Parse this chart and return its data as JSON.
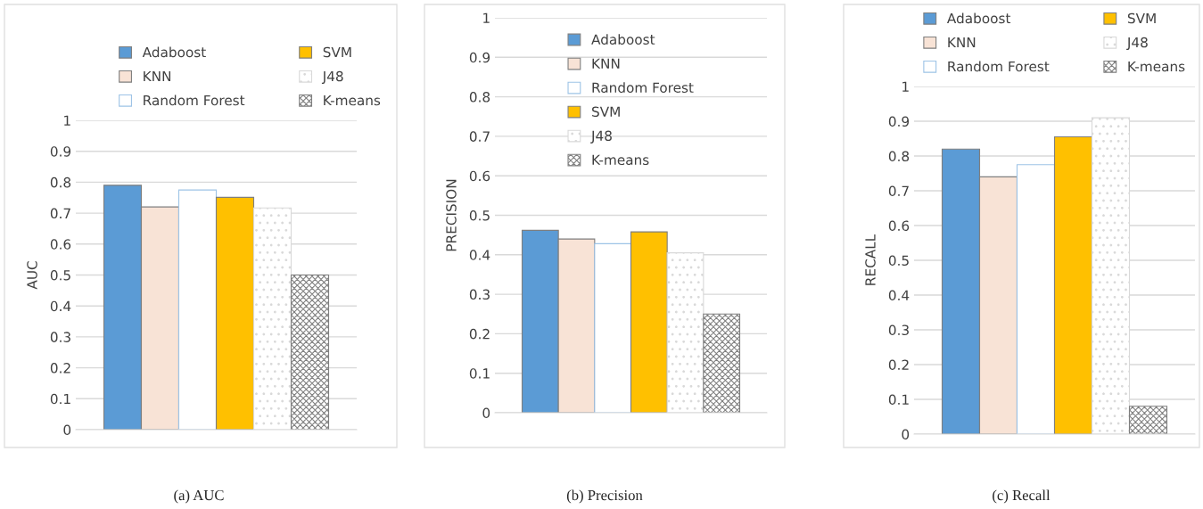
{
  "chart_data": [
    {
      "type": "bar",
      "ylabel": "AUC",
      "categories": [
        null
      ],
      "ylim": [
        0,
        1
      ],
      "yticks": [
        0,
        0.1,
        0.2,
        0.3,
        0.4,
        0.5,
        0.6,
        0.7,
        0.8,
        0.9,
        1
      ],
      "grid": "y",
      "legend": "top",
      "tick_labels": "y",
      "annotations": [
        "(a) AUC"
      ],
      "series": [
        {
          "name": "Adaboost",
          "color": "#5b9bd5",
          "values": [
            0.79
          ]
        },
        {
          "name": "KNN",
          "color": "#f8e3d6",
          "values": [
            0.72
          ]
        },
        {
          "name": "Random Forest",
          "color": "#ffffff",
          "values": [
            0.775
          ]
        },
        {
          "name": "SVM",
          "color": "#ffc000",
          "values": [
            0.751
          ]
        },
        {
          "name": "J48",
          "color": "#d9d9d9",
          "values": [
            0.717
          ]
        },
        {
          "name": "K-means",
          "color": "#7f7f7f",
          "values": [
            0.5
          ]
        }
      ]
    },
    {
      "type": "bar",
      "ylabel": "PRECISION",
      "categories": [
        null
      ],
      "ylim": [
        0,
        1
      ],
      "yticks": [
        0,
        0.1,
        0.2,
        0.3,
        0.4,
        0.5,
        0.6,
        0.7,
        0.8,
        0.9,
        1
      ],
      "grid": "y",
      "legend": "top",
      "tick_labels": "y",
      "annotations": [
        "(b) Precision"
      ],
      "series": [
        {
          "name": "Adaboost",
          "color": "#5b9bd5",
          "values": [
            0.462
          ]
        },
        {
          "name": "KNN",
          "color": "#f8e3d6",
          "values": [
            0.44
          ]
        },
        {
          "name": "Random Forest",
          "color": "#ffffff",
          "values": [
            0.428
          ]
        },
        {
          "name": "SVM",
          "color": "#ffc000",
          "values": [
            0.458
          ]
        },
        {
          "name": "J48",
          "color": "#d9d9d9",
          "values": [
            0.405
          ]
        },
        {
          "name": "K-means",
          "color": "#7f7f7f",
          "values": [
            0.25
          ]
        }
      ]
    },
    {
      "type": "bar",
      "ylabel": "RECALL",
      "categories": [
        null
      ],
      "ylim": [
        0,
        1
      ],
      "yticks": [
        0,
        0.1,
        0.2,
        0.3,
        0.4,
        0.5,
        0.6,
        0.7,
        0.8,
        0.9,
        1
      ],
      "grid": "y",
      "legend": "top",
      "tick_labels": "y",
      "annotations": [
        "(c) Recall"
      ],
      "series": [
        {
          "name": "Adaboost",
          "color": "#5b9bd5",
          "values": [
            0.82
          ]
        },
        {
          "name": "KNN",
          "color": "#f8e3d6",
          "values": [
            0.74
          ]
        },
        {
          "name": "Random Forest",
          "color": "#ffffff",
          "values": [
            0.775
          ]
        },
        {
          "name": "SVM",
          "color": "#ffc000",
          "values": [
            0.855
          ]
        },
        {
          "name": "J48",
          "color": "#d9d9d9",
          "values": [
            0.91
          ]
        },
        {
          "name": "K-means",
          "color": "#7f7f7f",
          "values": [
            0.08
          ]
        }
      ]
    }
  ]
}
